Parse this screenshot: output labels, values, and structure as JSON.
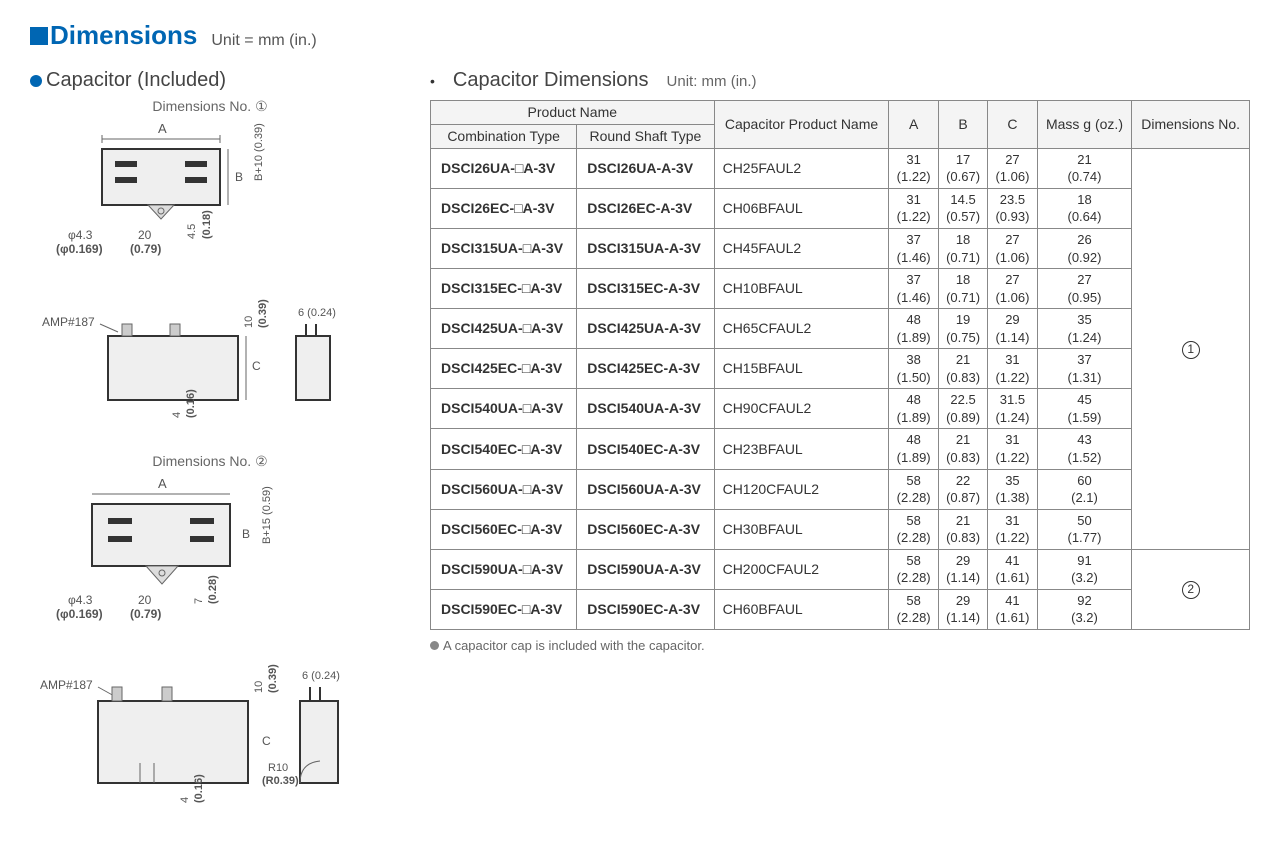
{
  "title": {
    "main": "Dimensions",
    "unit": "Unit = mm (in.)"
  },
  "left": {
    "section": "Capacitor (Included)",
    "diag1_label": "Dimensions No. ①",
    "diag2_label": "Dimensions No. ②",
    "amp_label": "AMP#187",
    "phi": "φ4.3",
    "phi_in": "(φ0.169)",
    "d20": "20",
    "d20_in": "(0.79)",
    "d45": "4.5",
    "d45_in": "(0.18)",
    "b10": "B+10 (0.39)",
    "d10": "10",
    "d10_in": "(0.39)",
    "d6": "6 (0.24)",
    "d4": "4",
    "d4_in": "(0.16)",
    "d7": "7",
    "d7_in": "(0.28)",
    "b15": "B+15 (0.59)",
    "r10": "R10",
    "r10_in": "(R0.39)"
  },
  "table": {
    "title": "Capacitor Dimensions",
    "unit": "Unit: mm (in.)",
    "headers": {
      "product_name": "Product Name",
      "combination": "Combination Type",
      "round_shaft": "Round Shaft Type",
      "capacitor": "Capacitor Product Name",
      "A": "A",
      "B": "B",
      "C": "C",
      "mass": "Mass g (oz.)",
      "dim_no": "Dimensions No."
    },
    "rows": [
      {
        "combo": "DSCI26UA-□A-3V",
        "round": "DSCI26UA-A-3V",
        "cap": "CH25FAUL2",
        "A": "31",
        "Ai": "(1.22)",
        "B": "17",
        "Bi": "(0.67)",
        "C": "27",
        "Ci": "(1.06)",
        "M": "21",
        "Mi": "(0.74)"
      },
      {
        "combo": "DSCI26EC-□A-3V",
        "round": "DSCI26EC-A-3V",
        "cap": "CH06BFAUL",
        "A": "31",
        "Ai": "(1.22)",
        "B": "14.5",
        "Bi": "(0.57)",
        "C": "23.5",
        "Ci": "(0.93)",
        "M": "18",
        "Mi": "(0.64)"
      },
      {
        "combo": "DSCI315UA-□A-3V",
        "round": "DSCI315UA-A-3V",
        "cap": "CH45FAUL2",
        "A": "37",
        "Ai": "(1.46)",
        "B": "18",
        "Bi": "(0.71)",
        "C": "27",
        "Ci": "(1.06)",
        "M": "26",
        "Mi": "(0.92)"
      },
      {
        "combo": "DSCI315EC-□A-3V",
        "round": "DSCI315EC-A-3V",
        "cap": "CH10BFAUL",
        "A": "37",
        "Ai": "(1.46)",
        "B": "18",
        "Bi": "(0.71)",
        "C": "27",
        "Ci": "(1.06)",
        "M": "27",
        "Mi": "(0.95)"
      },
      {
        "combo": "DSCI425UA-□A-3V",
        "round": "DSCI425UA-A-3V",
        "cap": "CH65CFAUL2",
        "A": "48",
        "Ai": "(1.89)",
        "B": "19",
        "Bi": "(0.75)",
        "C": "29",
        "Ci": "(1.14)",
        "M": "35",
        "Mi": "(1.24)"
      },
      {
        "combo": "DSCI425EC-□A-3V",
        "round": "DSCI425EC-A-3V",
        "cap": "CH15BFAUL",
        "A": "38",
        "Ai": "(1.50)",
        "B": "21",
        "Bi": "(0.83)",
        "C": "31",
        "Ci": "(1.22)",
        "M": "37",
        "Mi": "(1.31)"
      },
      {
        "combo": "DSCI540UA-□A-3V",
        "round": "DSCI540UA-A-3V",
        "cap": "CH90CFAUL2",
        "A": "48",
        "Ai": "(1.89)",
        "B": "22.5",
        "Bi": "(0.89)",
        "C": "31.5",
        "Ci": "(1.24)",
        "M": "45",
        "Mi": "(1.59)"
      },
      {
        "combo": "DSCI540EC-□A-3V",
        "round": "DSCI540EC-A-3V",
        "cap": "CH23BFAUL",
        "A": "48",
        "Ai": "(1.89)",
        "B": "21",
        "Bi": "(0.83)",
        "C": "31",
        "Ci": "(1.22)",
        "M": "43",
        "Mi": "(1.52)"
      },
      {
        "combo": "DSCI560UA-□A-3V",
        "round": "DSCI560UA-A-3V",
        "cap": "CH120CFAUL2",
        "A": "58",
        "Ai": "(2.28)",
        "B": "22",
        "Bi": "(0.87)",
        "C": "35",
        "Ci": "(1.38)",
        "M": "60",
        "Mi": "(2.1)"
      },
      {
        "combo": "DSCI560EC-□A-3V",
        "round": "DSCI560EC-A-3V",
        "cap": "CH30BFAUL",
        "A": "58",
        "Ai": "(2.28)",
        "B": "21",
        "Bi": "(0.83)",
        "C": "31",
        "Ci": "(1.22)",
        "M": "50",
        "Mi": "(1.77)"
      },
      {
        "combo": "DSCI590UA-□A-3V",
        "round": "DSCI590UA-A-3V",
        "cap": "CH200CFAUL2",
        "A": "58",
        "Ai": "(2.28)",
        "B": "29",
        "Bi": "(1.14)",
        "C": "41",
        "Ci": "(1.61)",
        "M": "91",
        "Mi": "(3.2)"
      },
      {
        "combo": "DSCI590EC-□A-3V",
        "round": "DSCI590EC-A-3V",
        "cap": "CH60BFAUL",
        "A": "58",
        "Ai": "(2.28)",
        "B": "29",
        "Bi": "(1.14)",
        "C": "41",
        "Ci": "(1.61)",
        "M": "92",
        "Mi": "(3.2)"
      }
    ],
    "dim_group1": "①",
    "dim_group2": "②",
    "footnote": "A capacitor cap is included with the capacitor."
  }
}
